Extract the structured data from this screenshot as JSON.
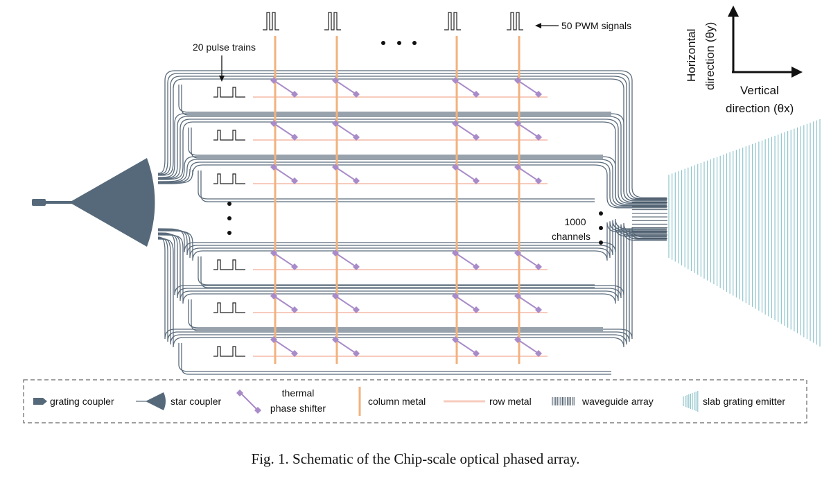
{
  "labels": {
    "pwm_signals": "50 PWM signals",
    "pulse_trains": "20 pulse trains",
    "channels_line1": "1000",
    "channels_line2": "channels",
    "axis_horizontal_line1": "Horizontal",
    "axis_horizontal_line2": "direction (θy)",
    "axis_vertical_line1": "Vertical",
    "axis_vertical_line2": "direction (θx)"
  },
  "legend": {
    "grating_coupler": "grating coupler",
    "star_coupler": "star coupler",
    "thermal_line1": "thermal",
    "thermal_line2": "phase shifter",
    "column_metal": "column metal",
    "row_metal": "row metal",
    "waveguide_array": "waveguide array",
    "slab_grating_emitter": "slab grating emitter"
  },
  "caption": "Fig. 1. Schematic of the Chip-scale optical phased array.",
  "colors": {
    "waveguide": "#5a6b7b",
    "coupler": "#56697a",
    "column_metal": "#f2b27e",
    "row_metal": "#f7cbbd",
    "phase_shifter": "#a98bc9",
    "emitter": "#8fc5cc"
  }
}
